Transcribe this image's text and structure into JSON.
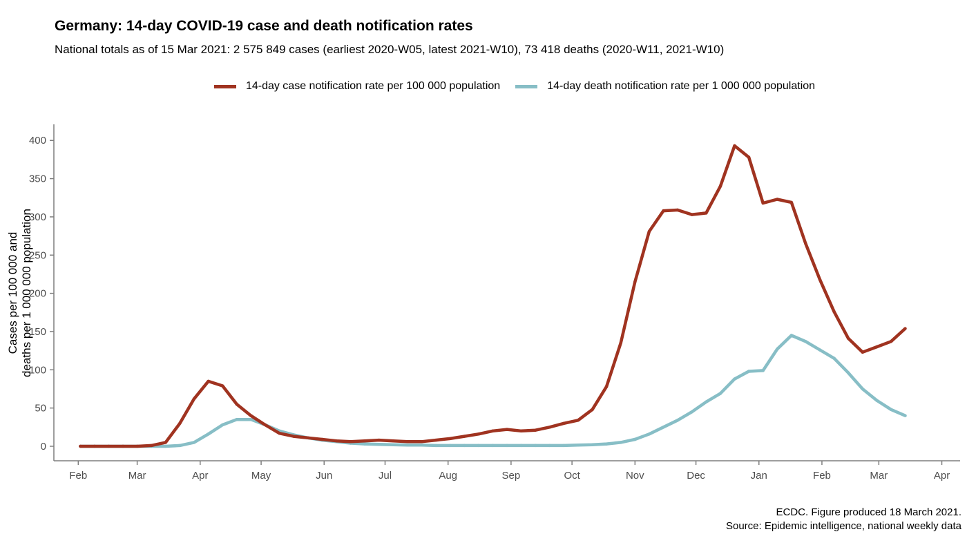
{
  "chart_data": {
    "type": "line",
    "title": "Germany: 14-day COVID-19 case and death notification rates",
    "subtitle": "National totals as of 15 Mar 2021: 2 575 849 cases (earliest 2020-W05, latest 2021-W10), 73 418 deaths (2020-W11, 2021-W10)",
    "ylabel_lines": [
      "Cases per 100 000 and",
      "deaths per 1 000 000 population"
    ],
    "xlabel": "",
    "xlim": [
      "2020-01-20",
      "2021-04-10"
    ],
    "ylim": [
      -19,
      421
    ],
    "yticks": [
      0,
      50,
      100,
      150,
      200,
      250,
      300,
      350,
      400
    ],
    "xticks": [
      {
        "date": "2020-02-01",
        "label": "Feb"
      },
      {
        "date": "2020-03-01",
        "label": "Mar"
      },
      {
        "date": "2020-04-01",
        "label": "Apr"
      },
      {
        "date": "2020-05-01",
        "label": "May"
      },
      {
        "date": "2020-06-01",
        "label": "Jun"
      },
      {
        "date": "2020-07-01",
        "label": "Jul"
      },
      {
        "date": "2020-08-01",
        "label": "Aug"
      },
      {
        "date": "2020-09-01",
        "label": "Sep"
      },
      {
        "date": "2020-10-01",
        "label": "Oct"
      },
      {
        "date": "2020-11-01",
        "label": "Nov"
      },
      {
        "date": "2020-12-01",
        "label": "Dec"
      },
      {
        "date": "2021-01-01",
        "label": "Jan"
      },
      {
        "date": "2021-02-01",
        "label": "Feb"
      },
      {
        "date": "2021-03-01",
        "label": "Mar"
      },
      {
        "date": "2021-04-01",
        "label": "Apr"
      }
    ],
    "grid": false,
    "legend_position": "top",
    "x": [
      "2020-02-02",
      "2020-02-09",
      "2020-02-16",
      "2020-02-23",
      "2020-03-01",
      "2020-03-08",
      "2020-03-15",
      "2020-03-22",
      "2020-03-29",
      "2020-04-05",
      "2020-04-12",
      "2020-04-19",
      "2020-04-26",
      "2020-05-03",
      "2020-05-10",
      "2020-05-17",
      "2020-05-24",
      "2020-05-31",
      "2020-06-07",
      "2020-06-14",
      "2020-06-21",
      "2020-06-28",
      "2020-07-05",
      "2020-07-12",
      "2020-07-19",
      "2020-07-26",
      "2020-08-02",
      "2020-08-09",
      "2020-08-16",
      "2020-08-23",
      "2020-08-30",
      "2020-09-06",
      "2020-09-13",
      "2020-09-20",
      "2020-09-27",
      "2020-10-04",
      "2020-10-11",
      "2020-10-18",
      "2020-10-25",
      "2020-11-01",
      "2020-11-08",
      "2020-11-15",
      "2020-11-22",
      "2020-11-29",
      "2020-12-06",
      "2020-12-13",
      "2020-12-20",
      "2020-12-27",
      "2021-01-03",
      "2021-01-10",
      "2021-01-17",
      "2021-01-24",
      "2021-01-31",
      "2021-02-07",
      "2021-02-14",
      "2021-02-21",
      "2021-02-28",
      "2021-03-07",
      "2021-03-14"
    ],
    "series": [
      {
        "name": "14-day case notification rate per 100 000 population",
        "color": "#A03320",
        "values": [
          0,
          0,
          0,
          0,
          0,
          1,
          5,
          30,
          62,
          85,
          79,
          55,
          40,
          28,
          17,
          13,
          11,
          9,
          7,
          6,
          7,
          8,
          7,
          6,
          6,
          8,
          10,
          13,
          16,
          20,
          22,
          20,
          21,
          25,
          30,
          34,
          48,
          78,
          135,
          215,
          281,
          308,
          309,
          303,
          305,
          340,
          393,
          378,
          318,
          323,
          319,
          265,
          218,
          176,
          141,
          123,
          130,
          137,
          154
        ]
      },
      {
        "name": "14-day death notification rate per 1 000 000 population",
        "color": "#87BEC6",
        "values": [
          0,
          0,
          0,
          0,
          0,
          0,
          0,
          1,
          5,
          16,
          28,
          35,
          35,
          28,
          20,
          15,
          11,
          8,
          6,
          4,
          3,
          2.5,
          2,
          1.5,
          1.5,
          1,
          1,
          1,
          1,
          1,
          1,
          1,
          1,
          1,
          1,
          1.5,
          2,
          3,
          5,
          9,
          16,
          25,
          34,
          45,
          58,
          69,
          88,
          98,
          99,
          127,
          145,
          137,
          126,
          115,
          96,
          75,
          60,
          48,
          40
        ]
      }
    ]
  },
  "caption": {
    "line1": "ECDC. Figure produced 18 March 2021.",
    "line2": "Source: Epidemic intelligence, national weekly data"
  }
}
